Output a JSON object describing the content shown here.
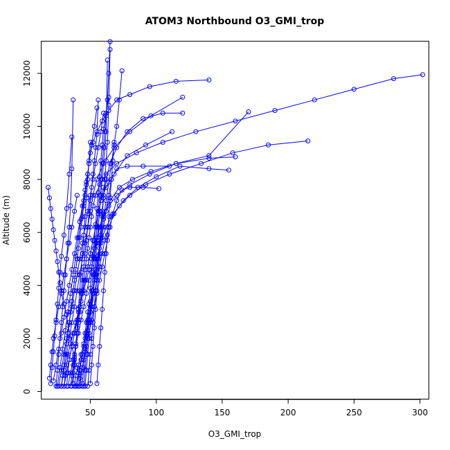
{
  "chart_data": {
    "type": "line",
    "title": "ATOM3 Northbound O3_GMI_trop",
    "xlabel": "O3_GMI_trop",
    "ylabel": "Altitude (m)",
    "xlim": [
      13,
      307
    ],
    "ylim": [
      -300,
      13200
    ],
    "x_ticks": [
      50,
      100,
      150,
      200,
      250,
      300
    ],
    "y_ticks": [
      0,
      2000,
      4000,
      6000,
      8000,
      10000,
      12000
    ],
    "grid": false,
    "legend": "none",
    "line_color": "#0000ff",
    "marker": "open-circle",
    "series": [
      {
        "x": [
          44,
          42,
          40,
          38,
          36,
          35,
          33,
          32,
          30,
          28,
          27,
          26,
          25,
          24,
          23,
          22,
          21,
          20,
          19,
          18
        ],
        "y": [
          200,
          500,
          900,
          1300,
          1700,
          2100,
          2500,
          2900,
          3300,
          3700,
          4100,
          4500,
          4900,
          5300,
          5700,
          6100,
          6500,
          6900,
          7300,
          7700
        ]
      },
      {
        "x": [
          38,
          39,
          41,
          43,
          45,
          46,
          47,
          48,
          50,
          52,
          53,
          54,
          55,
          57,
          59,
          62,
          66,
          72,
          80,
          92,
          110,
          134,
          158,
          185,
          215
        ],
        "y": [
          200,
          600,
          1000,
          1400,
          1800,
          2200,
          2600,
          3000,
          3400,
          3800,
          4200,
          4600,
          5000,
          5400,
          5800,
          6200,
          6600,
          7000,
          7400,
          7800,
          8200,
          8600,
          9000,
          9300,
          9450
        ]
      },
      {
        "x": [
          35,
          36,
          37,
          38,
          39,
          40,
          41,
          42,
          43,
          44,
          45,
          46,
          47,
          48,
          49,
          50,
          51,
          52,
          54,
          57,
          62,
          70,
          85,
          105,
          130,
          160,
          190,
          220,
          250,
          280,
          302
        ],
        "y": [
          200,
          600,
          1000,
          1400,
          1800,
          2200,
          2600,
          3000,
          3400,
          3800,
          4200,
          4600,
          5000,
          5400,
          5800,
          6200,
          6600,
          7000,
          7400,
          7800,
          8200,
          8600,
          9000,
          9400,
          9800,
          10200,
          10600,
          11000,
          11400,
          11800,
          11950
        ]
      },
      {
        "x": [
          30,
          31,
          32,
          33,
          35,
          37,
          39,
          41,
          43,
          45,
          47,
          49,
          51,
          53,
          55,
          57,
          60,
          64,
          70,
          80,
          95,
          115,
          140,
          170
        ],
        "y": [
          200,
          600,
          1000,
          1400,
          1800,
          2200,
          2600,
          3000,
          3400,
          3800,
          4200,
          4600,
          5000,
          5400,
          5800,
          6200,
          6600,
          7000,
          7400,
          7800,
          8200,
          8600,
          8900,
          10550
        ]
      },
      {
        "x": [
          28,
          29,
          30,
          31,
          32,
          33,
          34,
          35,
          36,
          37,
          38,
          39,
          40,
          41,
          42,
          43,
          44,
          45,
          46,
          47,
          48,
          49,
          50,
          52,
          55,
          59,
          64,
          70,
          80,
          95,
          115,
          140
        ],
        "y": [
          200,
          600,
          1000,
          1400,
          1800,
          2200,
          2600,
          3000,
          3400,
          3800,
          4200,
          4600,
          5000,
          5400,
          5800,
          6200,
          6600,
          7000,
          7400,
          7800,
          8200,
          8600,
          9000,
          9400,
          9800,
          10200,
          10600,
          11000,
          11200,
          11500,
          11700,
          11750
        ]
      },
      {
        "x": [
          45,
          46,
          47,
          48,
          49,
          50,
          51,
          52,
          53,
          54,
          55,
          56,
          57,
          58,
          59,
          60,
          61,
          62,
          63,
          64,
          65
        ],
        "y": [
          200,
          800,
          1400,
          2000,
          2600,
          3200,
          3800,
          4400,
          5000,
          5600,
          6200,
          6800,
          7400,
          8000,
          8600,
          9200,
          9800,
          10400,
          11000,
          12000,
          13200
        ]
      },
      {
        "x": [
          42,
          44,
          46,
          48,
          50,
          52,
          54,
          56,
          58,
          60,
          62,
          64,
          66,
          68,
          70,
          72,
          74
        ],
        "y": [
          200,
          900,
          1600,
          2300,
          3000,
          3700,
          4400,
          5100,
          5800,
          6500,
          7200,
          7900,
          8600,
          9300,
          10000,
          11000,
          12100
        ]
      },
      {
        "x": [
          25,
          27,
          29,
          31,
          33,
          35,
          37,
          39,
          41,
          43,
          45,
          47,
          49,
          51,
          53,
          55
        ],
        "y": [
          200,
          900,
          1600,
          2300,
          3000,
          3700,
          4400,
          5100,
          5800,
          6500,
          7200,
          7900,
          8600,
          9300,
          10000,
          10700
        ]
      },
      {
        "x": [
          20,
          21,
          22,
          23,
          24,
          25,
          26,
          27,
          28,
          30,
          32,
          34,
          36
        ],
        "y": [
          300,
          900,
          1500,
          2100,
          2700,
          3300,
          3900,
          4500,
          5100,
          5900,
          6900,
          8200,
          9600
        ]
      },
      {
        "x": [
          36,
          37,
          38,
          39,
          40,
          41,
          42,
          43,
          44,
          45,
          46,
          47,
          48,
          49,
          50,
          51,
          52,
          53,
          54,
          55,
          56
        ],
        "y": [
          200,
          700,
          1200,
          1700,
          2200,
          2700,
          3200,
          3700,
          4200,
          4700,
          5200,
          5700,
          6200,
          6700,
          7200,
          7700,
          8200,
          8700,
          9200,
          9700,
          11000
        ]
      },
      {
        "x": [
          26,
          28,
          30,
          32,
          34,
          36,
          38,
          40,
          42,
          44,
          46,
          48,
          50,
          52,
          54,
          56,
          58,
          60
        ],
        "y": [
          200,
          800,
          1400,
          2000,
          2600,
          3200,
          3800,
          4400,
          5000,
          5600,
          6200,
          6800,
          7400,
          8000,
          8600,
          9200,
          9800,
          10500
        ]
      },
      {
        "x": [
          40,
          42,
          44,
          46,
          48,
          50,
          52,
          54,
          56,
          58,
          60,
          62,
          64,
          66,
          70,
          78,
          90,
          110
        ],
        "y": [
          200,
          800,
          1400,
          2000,
          2600,
          3200,
          3800,
          4400,
          5000,
          5600,
          6200,
          6800,
          7400,
          8000,
          8400,
          8500,
          8500,
          8500
        ]
      },
      {
        "x": [
          32,
          33,
          34,
          36,
          38,
          40,
          42,
          44,
          46,
          48,
          50,
          52,
          54,
          56,
          58,
          60
        ],
        "y": [
          200,
          700,
          1200,
          1700,
          2200,
          2700,
          3200,
          3700,
          4200,
          4700,
          5200,
          5700,
          6200,
          6700,
          7200,
          7700
        ]
      },
      {
        "x": [
          48,
          49,
          50,
          51,
          52,
          53,
          54,
          55,
          56,
          57,
          58,
          59,
          60,
          62,
          65,
          70,
          78,
          90,
          105,
          120
        ],
        "y": [
          200,
          800,
          1400,
          2000,
          2600,
          3200,
          3800,
          4400,
          5000,
          5600,
          6200,
          6800,
          7400,
          8000,
          8600,
          9200,
          9800,
          10300,
          10500,
          10500
        ]
      },
      {
        "x": [
          22,
          24,
          26,
          28,
          30,
          32,
          34,
          36,
          38,
          40,
          42,
          44,
          46,
          48
        ],
        "y": [
          400,
          1000,
          1600,
          2200,
          2800,
          3400,
          4000,
          4600,
          5200,
          5800,
          6400,
          7000,
          7600,
          8200
        ]
      },
      {
        "x": [
          44,
          45,
          46,
          47,
          48,
          49,
          50,
          51,
          52,
          53,
          54,
          55,
          56,
          57,
          58,
          59,
          60,
          62,
          64
        ],
        "y": [
          300,
          900,
          1500,
          2100,
          2700,
          3300,
          3900,
          4500,
          5100,
          5700,
          6300,
          6900,
          7500,
          8100,
          8700,
          9300,
          9900,
          10500,
          11100
        ]
      },
      {
        "x": [
          30,
          32,
          34,
          36,
          38,
          40,
          42,
          44,
          46,
          48,
          50,
          52,
          54,
          56,
          58,
          62,
          68,
          78,
          92,
          112
        ],
        "y": [
          200,
          700,
          1200,
          1700,
          2200,
          2700,
          3200,
          3700,
          4200,
          4700,
          5200,
          5700,
          6200,
          6700,
          7200,
          7700,
          8200,
          8900,
          9300,
          9800
        ]
      },
      {
        "x": [
          37,
          38,
          39,
          40,
          41,
          42,
          43,
          44,
          45,
          46,
          47,
          48,
          49,
          50
        ],
        "y": [
          300,
          1000,
          1700,
          2400,
          3100,
          3800,
          4500,
          5200,
          5900,
          6600,
          7300,
          8000,
          8700,
          9400
        ]
      },
      {
        "x": [
          28,
          30,
          32,
          34,
          36,
          38,
          40,
          42,
          44,
          46,
          48,
          50,
          52,
          55,
          60,
          68,
          80,
          96,
          120
        ],
        "y": [
          200,
          800,
          1400,
          2000,
          2600,
          3200,
          3800,
          4400,
          5000,
          5600,
          6200,
          6800,
          7400,
          8000,
          8600,
          9200,
          9800,
          10400,
          11100
        ]
      },
      {
        "x": [
          50,
          51,
          52,
          53,
          54,
          55,
          56,
          57,
          58,
          59,
          60,
          61,
          62,
          63,
          64,
          65
        ],
        "y": [
          300,
          1000,
          1700,
          2400,
          3100,
          3800,
          4500,
          5200,
          5900,
          6600,
          7300,
          8000,
          8700,
          9400,
          10800,
          12900
        ]
      },
      {
        "x": [
          24,
          25,
          26,
          27,
          28,
          29,
          30,
          31,
          32,
          33,
          34,
          35,
          36,
          37
        ],
        "y": [
          200,
          800,
          1400,
          2000,
          2600,
          3200,
          3800,
          4400,
          5000,
          5600,
          6200,
          7000,
          8400,
          11000
        ]
      },
      {
        "x": [
          41,
          43,
          45,
          47,
          49,
          51,
          53,
          55,
          57,
          59,
          61,
          63,
          65,
          67,
          70,
          74,
          80,
          90,
          102
        ],
        "y": [
          200,
          700,
          1200,
          1700,
          2200,
          2700,
          3200,
          3700,
          4200,
          4700,
          5200,
          5700,
          6200,
          6700,
          7200,
          7600,
          7700,
          7700,
          7650
        ]
      },
      {
        "x": [
          33,
          35,
          37,
          39,
          41,
          43,
          45,
          47,
          49,
          51,
          53,
          55,
          57,
          60,
          65,
          72,
          82,
          96,
          115,
          140,
          160
        ],
        "y": [
          200,
          700,
          1200,
          1700,
          2200,
          2700,
          3200,
          3700,
          4200,
          4700,
          5200,
          5700,
          6200,
          6700,
          7200,
          7700,
          8000,
          8300,
          8600,
          8800,
          8850
        ]
      },
      {
        "x": [
          46,
          47,
          48,
          49,
          50,
          51,
          52,
          53,
          54,
          55,
          56,
          57,
          58,
          59,
          60,
          61,
          62,
          63
        ],
        "y": [
          200,
          800,
          1400,
          2000,
          2600,
          3200,
          3800,
          4400,
          5000,
          5600,
          6200,
          6800,
          7400,
          8000,
          8600,
          9200,
          9800,
          12500
        ]
      },
      {
        "x": [
          19,
          20,
          21,
          22,
          24,
          26,
          28,
          30,
          32,
          34,
          36,
          38,
          40
        ],
        "y": [
          500,
          1000,
          1500,
          2000,
          2600,
          3200,
          3800,
          4400,
          5000,
          5600,
          6200,
          6800,
          7400
        ]
      },
      {
        "x": [
          55,
          56,
          57,
          58,
          59,
          60,
          61,
          62,
          63,
          64,
          65,
          66,
          67,
          68
        ],
        "y": [
          300,
          1000,
          1700,
          2400,
          3100,
          3800,
          4500,
          5200,
          5900,
          6600,
          7300,
          8000,
          8700,
          9400
        ]
      },
      {
        "x": [
          39,
          41,
          43,
          45,
          47,
          49,
          51,
          53,
          55,
          57,
          59,
          61,
          64,
          68,
          75,
          86,
          100,
          118,
          140,
          155
        ],
        "y": [
          200,
          700,
          1200,
          1700,
          2200,
          2700,
          3200,
          3700,
          4200,
          4700,
          5200,
          5700,
          6200,
          6700,
          7200,
          7700,
          8100,
          8500,
          8400,
          8350
        ]
      }
    ]
  }
}
